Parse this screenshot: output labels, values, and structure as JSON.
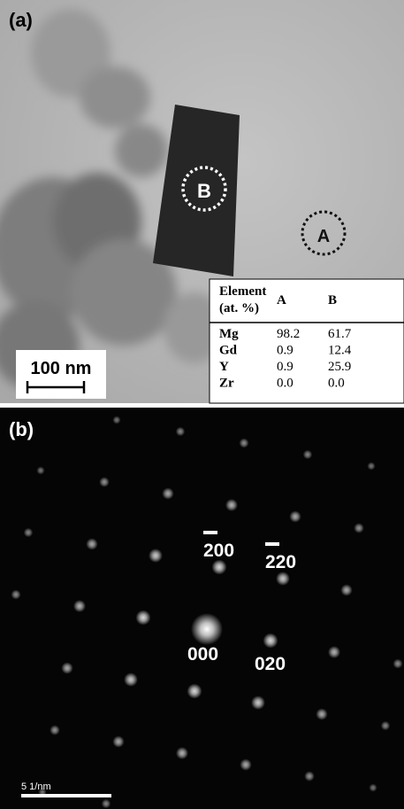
{
  "panel_a": {
    "label": "(a)",
    "markers": [
      "A",
      "B"
    ],
    "scale_bar": "100 nm",
    "table": {
      "header": [
        [
          "Element",
          "(at. %)"
        ],
        "A",
        "B"
      ],
      "rows": [
        [
          "Mg",
          "98.2",
          "61.7"
        ],
        [
          "Gd",
          "0.9",
          "12.4"
        ],
        [
          "Y",
          "0.9",
          "25.9"
        ],
        [
          "Zr",
          "0.0",
          "0.0"
        ]
      ]
    }
  },
  "panel_b": {
    "label": "(b)",
    "spot_labels": [
      "200",
      "220",
      "000",
      "020"
    ],
    "scale_bar": "5 1/nm"
  }
}
